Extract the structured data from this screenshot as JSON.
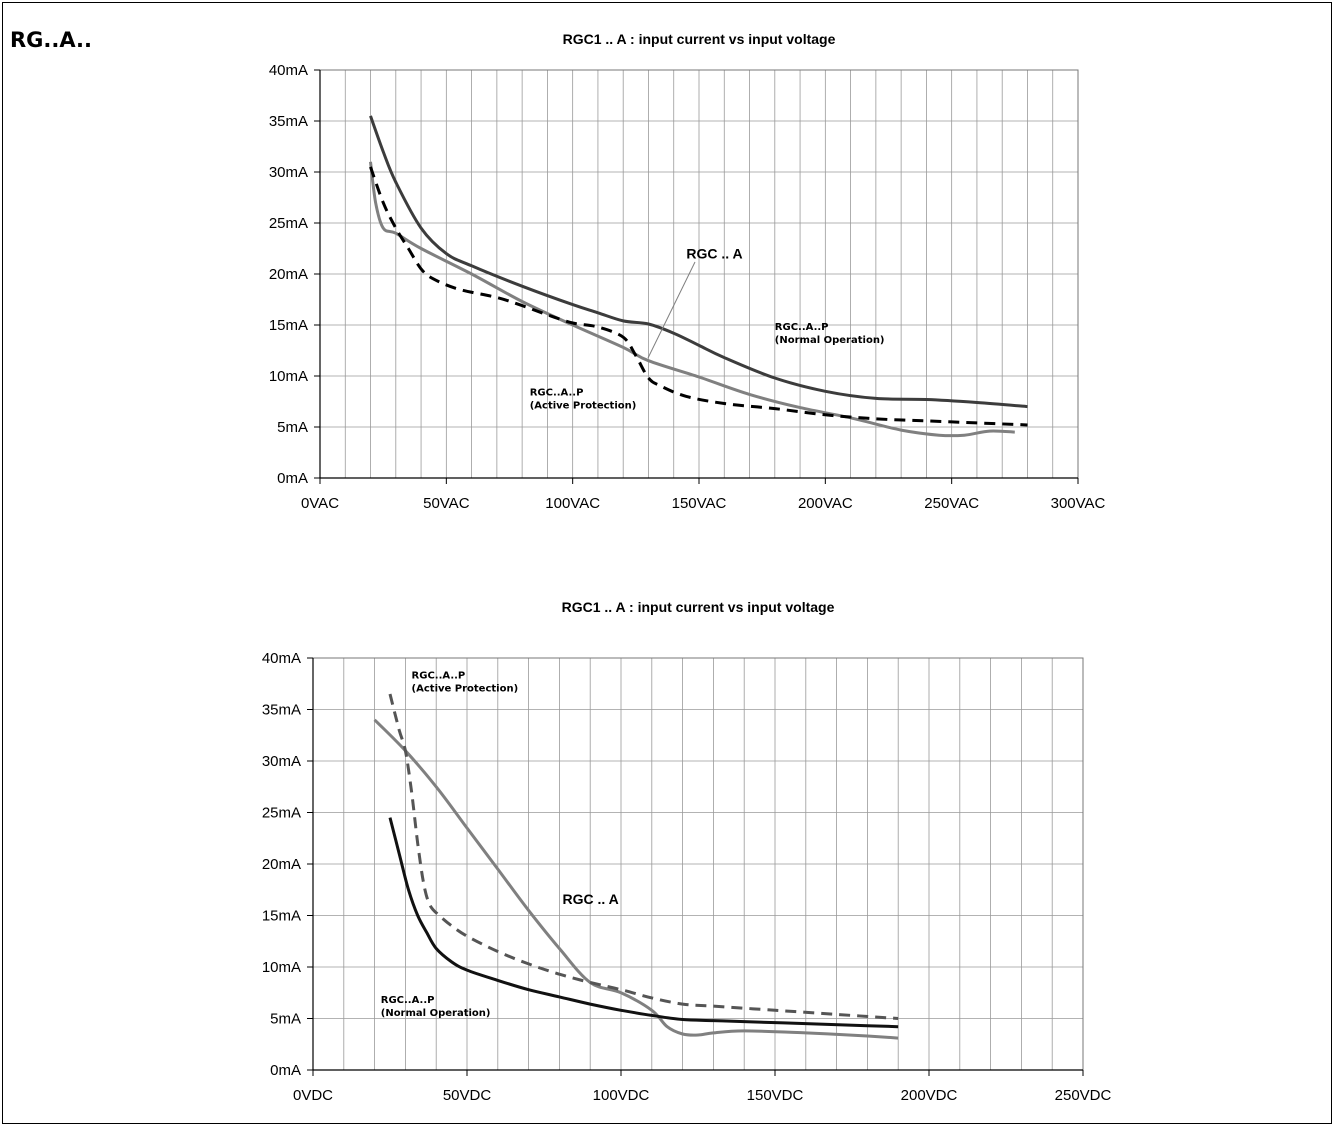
{
  "section_label": "RG..A..",
  "chart_data": [
    {
      "type": "line",
      "title": "RGC1 .. A : input current vs input voltage",
      "xlabel": "",
      "ylabel": "",
      "xlim": [
        0,
        300
      ],
      "ylim": [
        0,
        40
      ],
      "x_tick_values": [
        0,
        50,
        100,
        150,
        200,
        250,
        300
      ],
      "x_tick_labels": [
        "0VAC",
        "50VAC",
        "100VAC",
        "150VAC",
        "200VAC",
        "250VAC",
        "300VAC"
      ],
      "y_tick_values": [
        0,
        5,
        10,
        15,
        20,
        25,
        30,
        35,
        40
      ],
      "y_tick_labels": [
        "0mA",
        "5mA",
        "10mA",
        "15mA",
        "20mA",
        "25mA",
        "30mA",
        "35mA",
        "40mA"
      ],
      "grid": true,
      "series": [
        {
          "label": "RGC..A..P (Normal Operation)",
          "color": "#3c3c3c",
          "dashed": false,
          "points": [
            [
              20,
              35.5
            ],
            [
              25,
              32
            ],
            [
              30,
              29
            ],
            [
              40,
              24.5
            ],
            [
              50,
              22
            ],
            [
              60,
              20.8
            ],
            [
              80,
              18.8
            ],
            [
              100,
              17
            ],
            [
              110,
              16.2
            ],
            [
              120,
              15.4
            ],
            [
              130,
              15.1
            ],
            [
              140,
              14.2
            ],
            [
              150,
              13
            ],
            [
              160,
              11.8
            ],
            [
              180,
              9.8
            ],
            [
              200,
              8.5
            ],
            [
              220,
              7.8
            ],
            [
              240,
              7.7
            ],
            [
              260,
              7.4
            ],
            [
              280,
              7
            ]
          ]
        },
        {
          "label": "RGC .. A",
          "color": "#808080",
          "dashed": false,
          "points": [
            [
              20,
              31
            ],
            [
              22,
              27
            ],
            [
              25,
              24.5
            ],
            [
              30,
              24
            ],
            [
              40,
              22.5
            ],
            [
              60,
              20
            ],
            [
              80,
              17.3
            ],
            [
              100,
              15
            ],
            [
              120,
              12.8
            ],
            [
              130,
              11.5
            ],
            [
              150,
              9.9
            ],
            [
              170,
              8.2
            ],
            [
              190,
              6.9
            ],
            [
              210,
              5.9
            ],
            [
              230,
              4.7
            ],
            [
              245,
              4.2
            ],
            [
              255,
              4.2
            ],
            [
              265,
              4.6
            ],
            [
              275,
              4.5
            ]
          ]
        },
        {
          "label": "RGC..A..P (Active Protection)",
          "color": "#000000",
          "dashed": true,
          "points": [
            [
              20,
              30.5
            ],
            [
              25,
              27
            ],
            [
              30,
              24.5
            ],
            [
              35,
              22.5
            ],
            [
              40,
              20.5
            ],
            [
              45,
              19.5
            ],
            [
              55,
              18.5
            ],
            [
              70,
              17.7
            ],
            [
              80,
              16.9
            ],
            [
              90,
              16
            ],
            [
              100,
              15.2
            ],
            [
              110,
              14.8
            ],
            [
              120,
              13.8
            ],
            [
              125,
              12
            ],
            [
              130,
              9.8
            ],
            [
              135,
              9
            ],
            [
              145,
              8
            ],
            [
              160,
              7.3
            ],
            [
              180,
              6.8
            ],
            [
              200,
              6.2
            ],
            [
              220,
              5.8
            ],
            [
              240,
              5.6
            ],
            [
              260,
              5.4
            ],
            [
              280,
              5.2
            ]
          ]
        }
      ],
      "annotations": [
        {
          "text": "RGC .. A",
          "x": 145,
          "y": 21.5
        },
        {
          "lines": [
            "RGC..A..P",
            "(Normal Operation)"
          ],
          "x": 180,
          "y": 14.5
        },
        {
          "lines": [
            "RGC..A..P",
            "(Active Protection)"
          ],
          "x": 83,
          "y": 8.1
        }
      ]
    },
    {
      "type": "line",
      "title": "RGC1 .. A : input current vs input voltage",
      "xlabel": "",
      "ylabel": "",
      "xlim": [
        0,
        250
      ],
      "ylim": [
        0,
        40
      ],
      "x_tick_values": [
        0,
        50,
        100,
        150,
        200,
        250
      ],
      "x_tick_labels": [
        "0VDC",
        "50VDC",
        "100VDC",
        "150VDC",
        "200VDC",
        "250VDC"
      ],
      "y_tick_values": [
        0,
        5,
        10,
        15,
        20,
        25,
        30,
        35,
        40
      ],
      "y_tick_labels": [
        "0mA",
        "5mA",
        "10mA",
        "15mA",
        "20mA",
        "25mA",
        "30mA",
        "35mA",
        "40mA"
      ],
      "grid": true,
      "series": [
        {
          "label": "RGC .. A",
          "color": "#808080",
          "dashed": false,
          "points": [
            [
              20,
              34
            ],
            [
              30,
              31
            ],
            [
              40,
              27.5
            ],
            [
              50,
              23.5
            ],
            [
              60,
              19.5
            ],
            [
              70,
              15.5
            ],
            [
              80,
              11.8
            ],
            [
              90,
              8.5
            ],
            [
              100,
              7.5
            ],
            [
              110,
              5.8
            ],
            [
              115,
              4.2
            ],
            [
              120,
              3.5
            ],
            [
              125,
              3.4
            ],
            [
              130,
              3.6
            ],
            [
              140,
              3.8
            ],
            [
              160,
              3.6
            ],
            [
              180,
              3.3
            ],
            [
              190,
              3.1
            ]
          ]
        },
        {
          "label": "RGC..A..P (Active Protection)",
          "color": "#555555",
          "dashed": true,
          "points": [
            [
              25,
              36.5
            ],
            [
              28,
              33
            ],
            [
              30,
              31
            ],
            [
              32,
              27
            ],
            [
              34,
              22
            ],
            [
              36,
              18
            ],
            [
              38,
              16
            ],
            [
              41,
              15
            ],
            [
              45,
              14
            ],
            [
              50,
              13
            ],
            [
              60,
              11.5
            ],
            [
              70,
              10.3
            ],
            [
              80,
              9.3
            ],
            [
              90,
              8.5
            ],
            [
              100,
              7.8
            ],
            [
              110,
              7
            ],
            [
              120,
              6.4
            ],
            [
              130,
              6.2
            ],
            [
              150,
              5.8
            ],
            [
              170,
              5.4
            ],
            [
              190,
              5
            ]
          ]
        },
        {
          "label": "RGC..A..P (Normal Operation)",
          "color": "#111111",
          "dashed": false,
          "points": [
            [
              25,
              24.5
            ],
            [
              28,
              21
            ],
            [
              31,
              17.5
            ],
            [
              34,
              15
            ],
            [
              37,
              13.3
            ],
            [
              40,
              11.8
            ],
            [
              45,
              10.5
            ],
            [
              50,
              9.7
            ],
            [
              60,
              8.7
            ],
            [
              70,
              7.8
            ],
            [
              80,
              7.1
            ],
            [
              90,
              6.4
            ],
            [
              100,
              5.8
            ],
            [
              110,
              5.3
            ],
            [
              120,
              4.9
            ],
            [
              130,
              4.8
            ],
            [
              140,
              4.7
            ],
            [
              160,
              4.5
            ],
            [
              180,
              4.3
            ],
            [
              190,
              4.2
            ]
          ]
        }
      ],
      "annotations": [
        {
          "lines": [
            "RGC..A..P",
            "(Active Protection)"
          ],
          "x": 32,
          "y": 38
        },
        {
          "text": "RGC .. A",
          "x": 81,
          "y": 16.1
        },
        {
          "lines": [
            "RGC..A..P",
            "(Normal Operation)"
          ],
          "x": 22,
          "y": 6.5
        }
      ]
    }
  ]
}
